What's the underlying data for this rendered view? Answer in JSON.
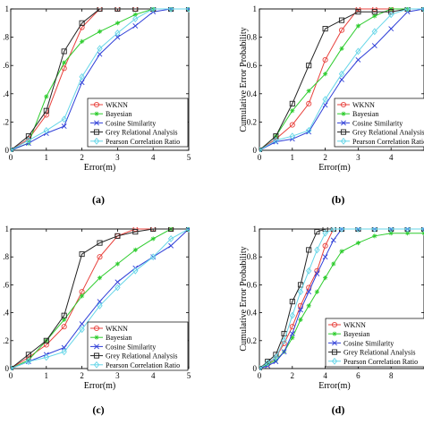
{
  "figure": {
    "series_styles": [
      {
        "name": "WKNN",
        "color": "#e8413c",
        "marker": "circle"
      },
      {
        "name": "Bayesian",
        "color": "#2dcc2d",
        "marker": "star"
      },
      {
        "name": "Cosine Similarity",
        "color": "#2f3fd8",
        "marker": "x"
      },
      {
        "name": "Grey Relational Analysis",
        "color": "#222222",
        "marker": "square"
      },
      {
        "name": "Pearson Correlation Ratio",
        "color": "#66d6e8",
        "marker": "diamond"
      }
    ]
  },
  "chart_data": [
    {
      "panel": "(a)",
      "type": "line",
      "xlabel": "Error(m)",
      "ylabel": "",
      "xlim": [
        0,
        5
      ],
      "ylim": [
        0,
        1
      ],
      "xticks": [
        "0",
        "1",
        "2",
        "3",
        "4",
        "5"
      ],
      "yticks": [
        "0",
        ".2",
        ".4",
        ".6",
        ".8",
        "1"
      ],
      "grid": false,
      "legend_position": "lower-right",
      "series": [
        {
          "name": "WKNN",
          "x": [
            0,
            0.5,
            1,
            1.5,
            2,
            2.5,
            3,
            3.5,
            4,
            4.5,
            5
          ],
          "y": [
            0,
            0.08,
            0.25,
            0.58,
            0.87,
            1,
            1,
            1,
            1,
            1,
            1
          ]
        },
        {
          "name": "Bayesian",
          "x": [
            0,
            0.5,
            1,
            1.5,
            2,
            2.5,
            3,
            3.5,
            4,
            4.5,
            5
          ],
          "y": [
            0,
            0.05,
            0.38,
            0.62,
            0.77,
            0.84,
            0.9,
            0.96,
            1,
            1,
            1
          ]
        },
        {
          "name": "Cosine Similarity",
          "x": [
            0,
            0.5,
            1,
            1.5,
            2,
            2.5,
            3,
            3.5,
            4,
            4.5,
            5
          ],
          "y": [
            0,
            0.05,
            0.12,
            0.17,
            0.48,
            0.68,
            0.8,
            0.88,
            0.98,
            1,
            1
          ]
        },
        {
          "name": "Grey Relational Analysis",
          "x": [
            0,
            0.5,
            1,
            1.5,
            2,
            2.5,
            3,
            3.5,
            4,
            4.5,
            5
          ],
          "y": [
            0,
            0.1,
            0.28,
            0.7,
            0.9,
            1,
            1,
            1,
            1,
            1,
            1
          ]
        },
        {
          "name": "Pearson Correlation Ratio",
          "x": [
            0,
            0.5,
            1,
            1.5,
            2,
            2.5,
            3,
            3.5,
            4,
            4.5,
            5
          ],
          "y": [
            0,
            0.07,
            0.14,
            0.22,
            0.52,
            0.72,
            0.83,
            0.93,
            1,
            1,
            1
          ]
        }
      ]
    },
    {
      "panel": "(b)",
      "type": "line",
      "xlabel": "Error(m)",
      "ylabel": "Cumulative Error Probability",
      "xlim": [
        0,
        5
      ],
      "ylim": [
        0,
        1
      ],
      "xticks": [
        "0",
        "1",
        "2",
        "3",
        "4"
      ],
      "yticks": [
        "0",
        "0.2",
        "0.4",
        "0.6",
        "0.8",
        "1"
      ],
      "grid": false,
      "legend_position": "lower-right",
      "series": [
        {
          "name": "WKNN",
          "x": [
            0,
            0.5,
            1,
            1.5,
            2,
            2.5,
            3,
            3.5,
            4,
            4.5,
            5
          ],
          "y": [
            0,
            0.08,
            0.18,
            0.33,
            0.64,
            0.85,
            1,
            1,
            1,
            1,
            1
          ]
        },
        {
          "name": "Bayesian",
          "x": [
            0,
            0.5,
            1,
            1.5,
            2,
            2.5,
            3,
            3.5,
            4,
            4.5,
            5
          ],
          "y": [
            0,
            0.1,
            0.28,
            0.42,
            0.54,
            0.72,
            0.88,
            0.95,
            1,
            1,
            1
          ]
        },
        {
          "name": "Cosine Similarity",
          "x": [
            0,
            0.5,
            1,
            1.5,
            2,
            2.5,
            3,
            3.5,
            4,
            4.5,
            5
          ],
          "y": [
            0,
            0.06,
            0.08,
            0.13,
            0.32,
            0.5,
            0.64,
            0.74,
            0.86,
            0.98,
            1
          ]
        },
        {
          "name": "Grey Relational Analysis",
          "x": [
            0,
            0.5,
            1,
            1.5,
            2,
            2.5,
            3,
            3.5,
            4,
            4.5,
            5
          ],
          "y": [
            0,
            0.1,
            0.33,
            0.6,
            0.86,
            0.92,
            0.98,
            0.98,
            0.98,
            1,
            1
          ]
        },
        {
          "name": "Pearson Correlation Ratio",
          "x": [
            0,
            0.5,
            1,
            1.5,
            2,
            2.5,
            3,
            3.5,
            4,
            4.5,
            5
          ],
          "y": [
            0,
            0.07,
            0.1,
            0.14,
            0.36,
            0.54,
            0.7,
            0.84,
            0.96,
            1,
            1
          ]
        }
      ]
    },
    {
      "panel": "(c)",
      "type": "line",
      "xlabel": "Error(m)",
      "ylabel": "",
      "xlim": [
        0,
        5
      ],
      "ylim": [
        0,
        1
      ],
      "xticks": [
        "0",
        "1",
        "2",
        "3",
        "4",
        "5"
      ],
      "yticks": [
        "0",
        ".2",
        ".4",
        ".6",
        ".8",
        "1"
      ],
      "grid": false,
      "legend_position": "lower-right",
      "series": [
        {
          "name": "WKNN",
          "x": [
            0,
            0.5,
            1,
            1.5,
            2,
            2.5,
            3,
            3.5,
            4,
            4.5,
            5
          ],
          "y": [
            0,
            0.08,
            0.17,
            0.3,
            0.55,
            0.8,
            0.95,
            1,
            1,
            1,
            1
          ]
        },
        {
          "name": "Bayesian",
          "x": [
            0,
            0.5,
            1,
            1.5,
            2,
            2.5,
            3,
            3.5,
            4,
            4.5,
            5
          ],
          "y": [
            0,
            0.06,
            0.2,
            0.35,
            0.52,
            0.65,
            0.75,
            0.85,
            0.93,
            1,
            1
          ]
        },
        {
          "name": "Cosine Similarity",
          "x": [
            0,
            0.5,
            1,
            1.5,
            2,
            2.5,
            3,
            3.5,
            4,
            4.5,
            5
          ],
          "y": [
            0,
            0.05,
            0.1,
            0.15,
            0.32,
            0.48,
            0.62,
            0.72,
            0.8,
            0.88,
            1
          ]
        },
        {
          "name": "Grey Relational Analysis",
          "x": [
            0,
            0.5,
            1,
            1.5,
            2,
            2.5,
            3,
            3.5,
            4,
            4.5,
            5
          ],
          "y": [
            0,
            0.1,
            0.2,
            0.38,
            0.82,
            0.9,
            0.95,
            0.98,
            1,
            1,
            1
          ]
        },
        {
          "name": "Pearson Correlation Ratio",
          "x": [
            0,
            0.5,
            1,
            1.5,
            2,
            2.5,
            3,
            3.5,
            4,
            4.5,
            5
          ],
          "y": [
            0,
            0.05,
            0.08,
            0.12,
            0.28,
            0.45,
            0.58,
            0.7,
            0.8,
            0.93,
            1
          ]
        }
      ]
    },
    {
      "panel": "(d)",
      "type": "line",
      "xlabel": "Error(m)",
      "ylabel": "Cumulative Error Probability",
      "xlim": [
        0,
        10
      ],
      "ylim": [
        0,
        1
      ],
      "xticks": [
        "0",
        "2",
        "4",
        "6",
        "8"
      ],
      "yticks": [
        "0",
        "0.2",
        "0.4",
        "0.6",
        "0.8",
        "1"
      ],
      "grid": false,
      "legend_position": "lower-right",
      "series": [
        {
          "name": "WKNN",
          "x": [
            0,
            0.5,
            1,
            1.5,
            2,
            2.5,
            3,
            3.5,
            4,
            4.5,
            5,
            6,
            7,
            8,
            9,
            10
          ],
          "y": [
            0,
            0.03,
            0.08,
            0.18,
            0.3,
            0.45,
            0.58,
            0.7,
            0.88,
            1,
            1,
            1,
            1,
            1,
            1,
            1
          ]
        },
        {
          "name": "Bayesian",
          "x": [
            0,
            0.5,
            1,
            1.5,
            2,
            2.5,
            3,
            3.5,
            4,
            4.5,
            5,
            6,
            7,
            8,
            9,
            10
          ],
          "y": [
            0,
            0.03,
            0.06,
            0.12,
            0.22,
            0.35,
            0.45,
            0.55,
            0.65,
            0.75,
            0.84,
            0.9,
            0.95,
            0.97,
            0.97,
            0.97
          ]
        },
        {
          "name": "Cosine Similarity",
          "x": [
            0,
            0.5,
            1,
            1.5,
            2,
            2.5,
            3,
            3.5,
            4,
            4.5,
            5,
            6,
            7,
            8,
            9,
            10
          ],
          "y": [
            0,
            0.02,
            0.05,
            0.12,
            0.25,
            0.42,
            0.55,
            0.68,
            0.8,
            0.92,
            1,
            1,
            1,
            1,
            1,
            1
          ]
        },
        {
          "name": "Grey Relational Analysis",
          "x": [
            0,
            0.5,
            1,
            1.5,
            2,
            2.5,
            3,
            3.5,
            4,
            4.5,
            5,
            6,
            7,
            8,
            9,
            10
          ],
          "y": [
            0,
            0.05,
            0.1,
            0.25,
            0.48,
            0.6,
            0.85,
            0.98,
            1,
            1,
            1,
            1,
            1,
            1,
            1,
            1
          ]
        },
        {
          "name": "Pearson Correlation Ratio",
          "x": [
            0,
            0.5,
            1,
            1.5,
            2,
            2.5,
            3,
            3.5,
            4,
            4.5,
            5,
            6,
            7,
            8,
            9,
            10
          ],
          "y": [
            0,
            0.04,
            0.08,
            0.2,
            0.38,
            0.55,
            0.7,
            0.85,
            0.97,
            1,
            1,
            1,
            1,
            1,
            1,
            1
          ]
        }
      ]
    }
  ]
}
